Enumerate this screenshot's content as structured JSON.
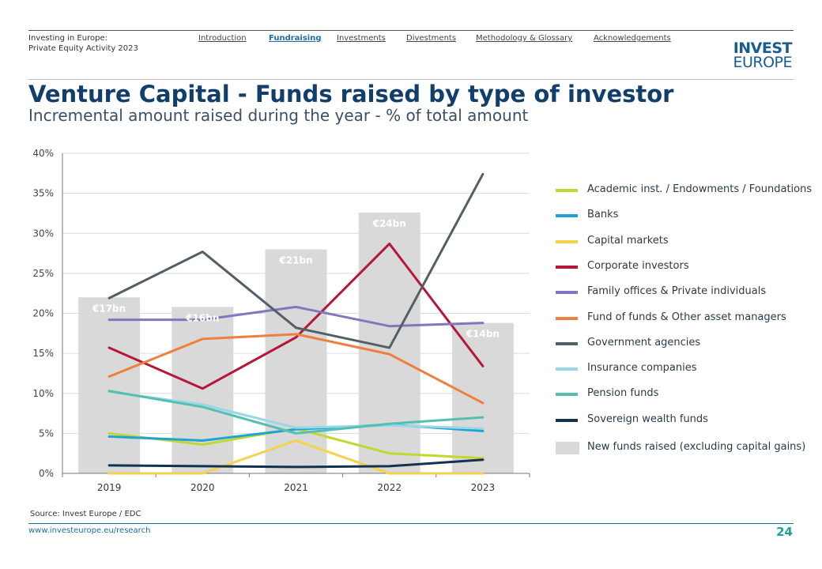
{
  "header": {
    "report_line1": "Investing in Europe:",
    "report_line2": "Private Equity Activity 2023",
    "nav": [
      "Introduction",
      "Fundraising",
      "Investments",
      "Divestments",
      "Methodology & Glossary",
      "Acknowledgements"
    ],
    "active_nav": "Fundraising",
    "logo_line1": "INVEST",
    "logo_line2": "EUROPE"
  },
  "title": "Venture Capital - Funds raised by type of investor",
  "subtitle": "Incremental amount raised during the year - % of total amount",
  "chart_data": {
    "type": "line",
    "categories": [
      "2019",
      "2020",
      "2021",
      "2022",
      "2023"
    ],
    "ylim": [
      0,
      40
    ],
    "yticks": [
      0,
      5,
      10,
      15,
      20,
      25,
      30,
      35,
      40
    ],
    "ytick_labels": [
      "0%",
      "5%",
      "10%",
      "15%",
      "20%",
      "25%",
      "30%",
      "35%",
      "40%"
    ],
    "bars": {
      "name": "New funds raised (excluding capital gains)",
      "values": [
        22,
        20.8,
        28,
        32.6,
        18.8
      ],
      "labels": [
        "€17bn",
        "€16bn",
        "€21bn",
        "€24bn",
        "€14bn"
      ],
      "color": "#d9d9d9"
    },
    "series": [
      {
        "name": "Academic inst. / Endowments / Foundations",
        "color": "#c3d82e",
        "values": [
          5.0,
          3.6,
          5.6,
          2.5,
          1.9
        ]
      },
      {
        "name": "Banks",
        "color": "#1fa3d4",
        "values": [
          4.6,
          4.1,
          5.5,
          6.1,
          5.3
        ]
      },
      {
        "name": "Capital markets",
        "color": "#f3d34a",
        "values": [
          0.0,
          0.0,
          4.1,
          0.0,
          0.0
        ]
      },
      {
        "name": "Corporate investors",
        "color": "#b5173a",
        "values": [
          15.7,
          10.6,
          17.0,
          28.7,
          13.4
        ]
      },
      {
        "name": "Family offices & Private individuals",
        "color": "#8277bf",
        "values": [
          19.2,
          19.2,
          20.8,
          18.4,
          18.8
        ]
      },
      {
        "name": "Fund of funds & Other asset managers",
        "color": "#ee7f3d",
        "values": [
          12.1,
          16.8,
          17.4,
          14.9,
          8.8
        ]
      },
      {
        "name": "Government agencies",
        "color": "#535f67",
        "values": [
          21.9,
          27.7,
          18.2,
          15.7,
          37.4
        ]
      },
      {
        "name": "Insurance companies",
        "color": "#97d7e7",
        "values": [
          10.2,
          8.6,
          5.7,
          6.0,
          5.6
        ]
      },
      {
        "name": "Pension funds",
        "color": "#54c0b1",
        "values": [
          10.3,
          8.3,
          5.0,
          6.2,
          7.0
        ]
      },
      {
        "name": "Sovereign wealth funds",
        "color": "#13324f",
        "values": [
          1.0,
          0.9,
          0.8,
          0.9,
          1.7
        ]
      }
    ],
    "legend_position": "right"
  },
  "footer": {
    "source": "Source: Invest Europe / EDC",
    "url": "www.investeurope.eu/research",
    "page": "24"
  }
}
